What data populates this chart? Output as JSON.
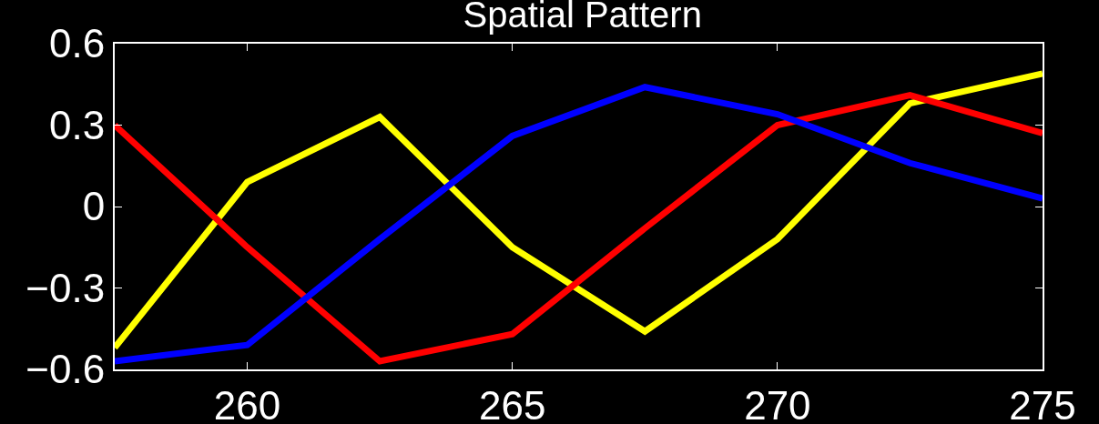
{
  "chart_data": {
    "type": "line",
    "title": "Spatial Pattern",
    "x": [
      257.5,
      260,
      262.5,
      265,
      267.5,
      270,
      272.5,
      275
    ],
    "series": [
      {
        "color": "#ffff00",
        "values": [
          -0.52,
          0.09,
          0.33,
          -0.15,
          -0.46,
          -0.12,
          0.38,
          0.49
        ]
      },
      {
        "color": "#ff0000",
        "values": [
          0.3,
          -0.15,
          -0.57,
          -0.47,
          -0.08,
          0.3,
          0.41,
          0.27
        ]
      },
      {
        "color": "#0000ff",
        "values": [
          -0.57,
          -0.51,
          -0.12,
          0.26,
          0.44,
          0.34,
          0.16,
          0.03
        ]
      }
    ],
    "xlim": [
      257.5,
      275
    ],
    "xticks": [
      260,
      265,
      270,
      275
    ],
    "ylim": [
      -0.6,
      0.6
    ],
    "yticks": [
      {
        "value": -0.6,
        "label": "−0.6"
      },
      {
        "value": -0.3,
        "label": "−0.3"
      },
      0,
      0.3,
      0.6
    ],
    "grid": false,
    "marker": "none",
    "line_style": "solid"
  }
}
